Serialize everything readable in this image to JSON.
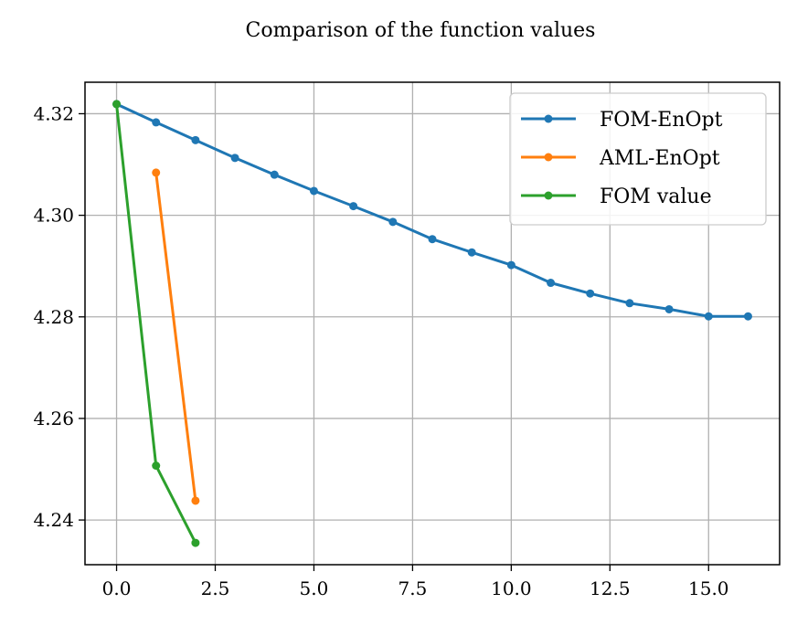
{
  "chart_data": {
    "type": "line",
    "title": "Comparison of the function values",
    "xlabel": "",
    "ylabel": "",
    "xlim": [
      -0.8,
      16.8
    ],
    "ylim": [
      4.2312,
      4.3262
    ],
    "xticks": [
      0.0,
      2.5,
      5.0,
      7.5,
      10.0,
      12.5,
      15.0
    ],
    "xtick_labels": [
      "0.0",
      "2.5",
      "5.0",
      "7.5",
      "10.0",
      "12.5",
      "15.0"
    ],
    "yticks": [
      4.24,
      4.26,
      4.28,
      4.3,
      4.32
    ],
    "ytick_labels": [
      "4.24",
      "4.26",
      "4.28",
      "4.30",
      "4.32"
    ],
    "grid": true,
    "legend_position": "top-right",
    "series": [
      {
        "name": "FOM-EnOpt",
        "color": "#1f77b4",
        "x": [
          0,
          1,
          2,
          3,
          4,
          5,
          6,
          7,
          8,
          9,
          10,
          11,
          12,
          13,
          14,
          15,
          16
        ],
        "y": [
          4.3219,
          4.3183,
          4.3148,
          4.3113,
          4.308,
          4.3048,
          4.3018,
          4.2987,
          4.2953,
          4.2927,
          4.2902,
          4.2867,
          4.2846,
          4.2827,
          4.2815,
          4.2801,
          4.2801
        ]
      },
      {
        "name": "AML-EnOpt",
        "color": "#ff7f0e",
        "x": [
          1,
          2
        ],
        "y": [
          4.3084,
          4.2438
        ]
      },
      {
        "name": "FOM value",
        "color": "#2ca02c",
        "x": [
          0,
          1,
          2
        ],
        "y": [
          4.3219,
          4.2507,
          4.2355
        ]
      }
    ]
  }
}
